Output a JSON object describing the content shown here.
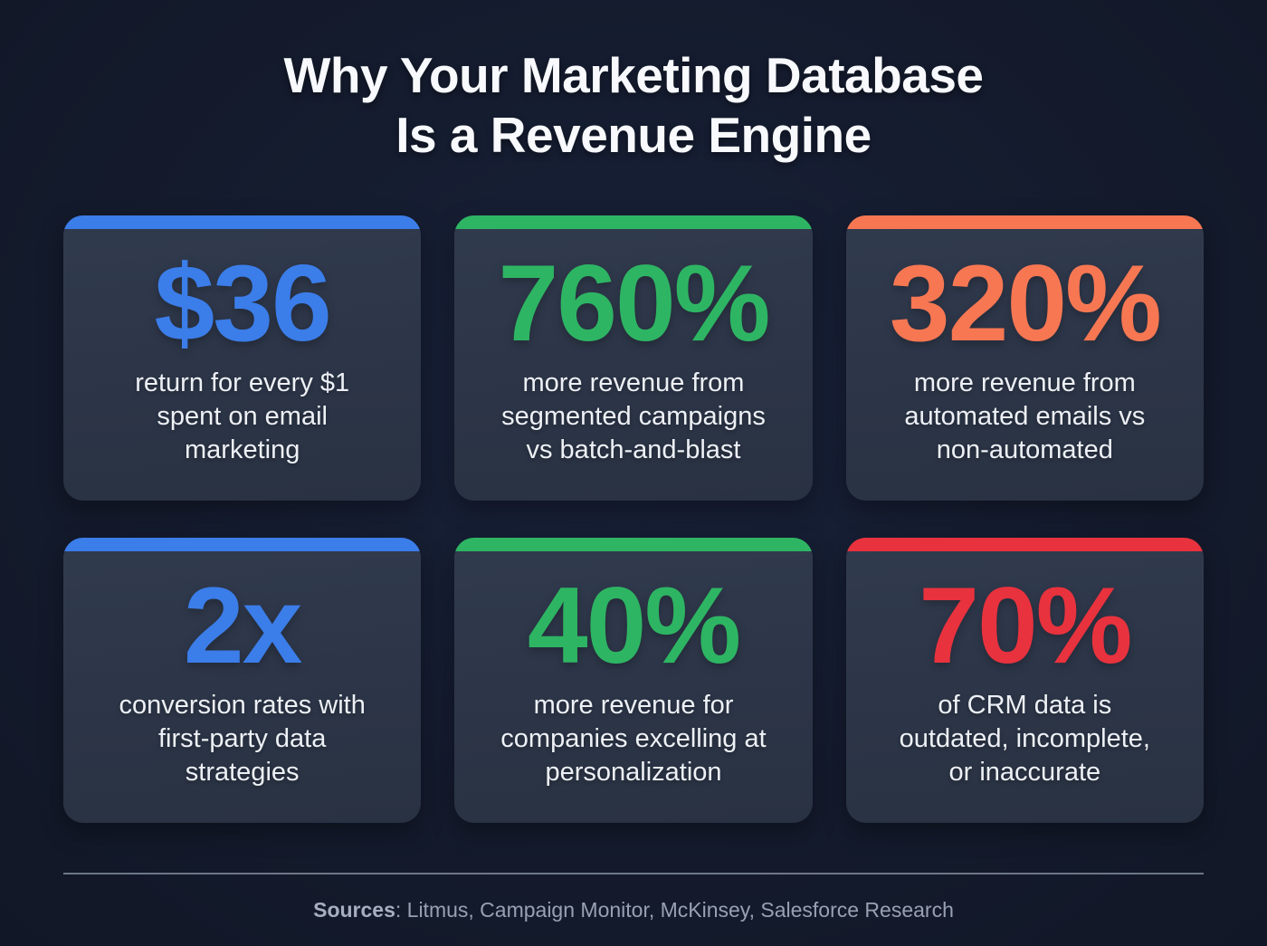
{
  "title": {
    "line1": "Why Your Marketing Database",
    "line2": "Is a Revenue Engine"
  },
  "cards": [
    {
      "value": "$36",
      "label": "return for every $1 spent on email marketing",
      "lines": [
        "return for every $1",
        "spent on email",
        "marketing"
      ],
      "accent": "#3b7de9"
    },
    {
      "value": "760%",
      "label": "more revenue from segmented campaigns vs batch-and-blast",
      "lines": [
        "more revenue from",
        "segmented campaigns",
        "vs batch-and-blast"
      ],
      "accent": "#2eb563"
    },
    {
      "value": "320%",
      "label": "more revenue from automated emails vs non-automated",
      "lines": [
        "more revenue from",
        "automated emails vs",
        "non-automated"
      ],
      "accent": "#f77753"
    },
    {
      "value": "2x",
      "label": "conversion rates with first-party data strategies",
      "lines": [
        "conversion rates with",
        "first-party data",
        "strategies"
      ],
      "accent": "#3b7de9"
    },
    {
      "value": "40%",
      "label": "more revenue for companies excelling at personalization",
      "lines": [
        "more revenue for",
        "companies excelling at",
        "personalization"
      ],
      "accent": "#2eb563"
    },
    {
      "value": "70%",
      "label": "of CRM data is outdated, incomplete, or inaccurate",
      "lines": [
        "of CRM data is",
        "outdated, incomplete,",
        "or inaccurate"
      ],
      "accent": "#e8323e"
    }
  ],
  "footer": {
    "sources_label": "Sources",
    "sources_text": ": Litmus, Campaign Monitor, McKinsey, Salesforce Research"
  },
  "chart_data": {
    "type": "table",
    "title": "Why Your Marketing Database Is a Revenue Engine",
    "stats": [
      {
        "value": "$36",
        "description": "return for every $1 spent on email marketing",
        "color": "#3b7de9"
      },
      {
        "value": "760%",
        "description": "more revenue from segmented campaigns vs batch-and-blast",
        "color": "#2eb563"
      },
      {
        "value": "320%",
        "description": "more revenue from automated emails vs non-automated",
        "color": "#f77753"
      },
      {
        "value": "2x",
        "description": "conversion rates with first-party data strategies",
        "color": "#3b7de9"
      },
      {
        "value": "40%",
        "description": "more revenue for companies excelling at personalization",
        "color": "#2eb563"
      },
      {
        "value": "70%",
        "description": "of CRM data is outdated, incomplete, or inaccurate",
        "color": "#e8323e"
      }
    ],
    "sources": "Litmus, Campaign Monitor, McKinsey, Salesforce Research"
  }
}
